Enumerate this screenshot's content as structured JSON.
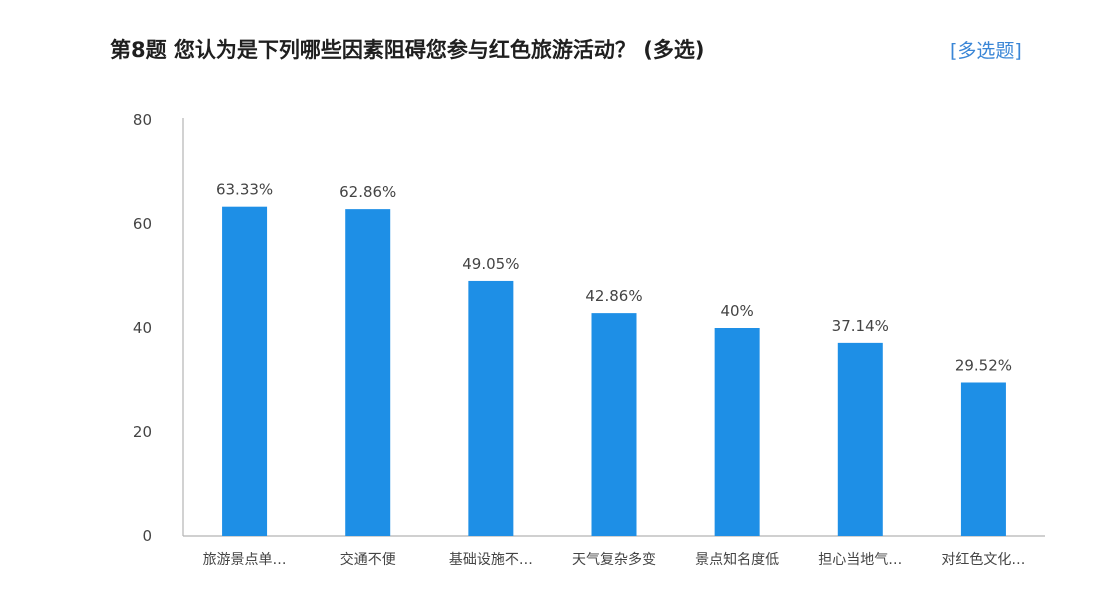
{
  "header": {
    "question_title": "第8题   您认为是下列哪些因素阻碍您参与红色旅游活动？  (多选)",
    "question_type_tag": "[多选题]"
  },
  "colors": {
    "bar": "#1e8fe6",
    "axis": "#b5b5b5",
    "text": "#444444",
    "tag": "#3a86d6"
  },
  "chart_data": {
    "type": "bar",
    "title": "",
    "xlabel": "",
    "ylabel": "",
    "ylim": [
      0,
      80
    ],
    "yticks": [
      0,
      20,
      40,
      60,
      80
    ],
    "grid": false,
    "legend": "none",
    "categories": [
      "旅游景点单…",
      "交通不便",
      "基础设施不…",
      "天气复杂多变",
      "景点知名度低",
      "担心当地气…",
      "对红色文化…"
    ],
    "values": [
      63.33,
      62.86,
      49.05,
      42.86,
      40,
      37.14,
      29.52
    ],
    "data_labels": [
      "63.33%",
      "62.86%",
      "49.05%",
      "42.86%",
      "40%",
      "37.14%",
      "29.52%"
    ]
  }
}
